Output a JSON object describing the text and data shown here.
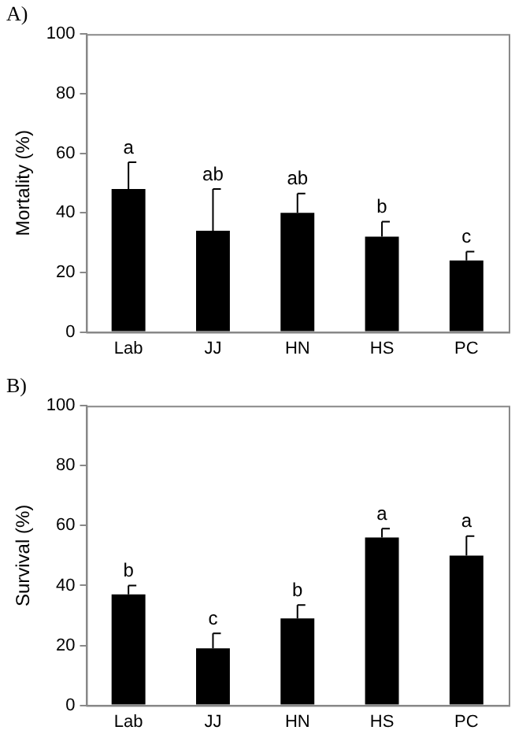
{
  "chart_data": [
    {
      "type": "bar",
      "title": "A)",
      "ylabel": "Mortality (%)",
      "categories": [
        "Lab",
        "JJ",
        "HN",
        "HS",
        "PC"
      ],
      "values": [
        48,
        34,
        40,
        32,
        24
      ],
      "color": "#000000",
      "errors": [
        [
          48,
          57
        ],
        [
          34,
          48
        ],
        [
          40,
          46.5
        ],
        [
          32,
          37
        ],
        [
          24,
          27
        ]
      ],
      "ylim": [
        0,
        100
      ],
      "yticks": [
        0,
        20,
        40,
        60,
        80,
        100
      ],
      "grid": false,
      "legend": false,
      "annotations": [
        {
          "text": "a",
          "x": "Lab",
          "y": 57
        },
        {
          "text": "ab",
          "x": "JJ",
          "y": 48
        },
        {
          "text": "ab",
          "x": "HN",
          "y": 46.5
        },
        {
          "text": "b",
          "x": "HS",
          "y": 37
        },
        {
          "text": "c",
          "x": "PC",
          "y": 27
        }
      ]
    },
    {
      "type": "bar",
      "title": "B)",
      "ylabel": "Survival (%)",
      "categories": [
        "Lab",
        "JJ",
        "HN",
        "HS",
        "PC"
      ],
      "values": [
        37,
        19,
        29,
        56,
        50
      ],
      "color": "#000000",
      "errors": [
        [
          37,
          40
        ],
        [
          19,
          24
        ],
        [
          29,
          33.5
        ],
        [
          56,
          59
        ],
        [
          50,
          56.5
        ]
      ],
      "ylim": [
        0,
        100
      ],
      "yticks": [
        0,
        20,
        40,
        60,
        80,
        100
      ],
      "grid": false,
      "legend": false,
      "annotations": [
        {
          "text": "b",
          "x": "Lab",
          "y": 40
        },
        {
          "text": "c",
          "x": "JJ",
          "y": 24
        },
        {
          "text": "b",
          "x": "HN",
          "y": 33.5
        },
        {
          "text": "a",
          "x": "HS",
          "y": 59
        },
        {
          "text": "a",
          "x": "PC",
          "y": 56.5
        }
      ]
    }
  ]
}
